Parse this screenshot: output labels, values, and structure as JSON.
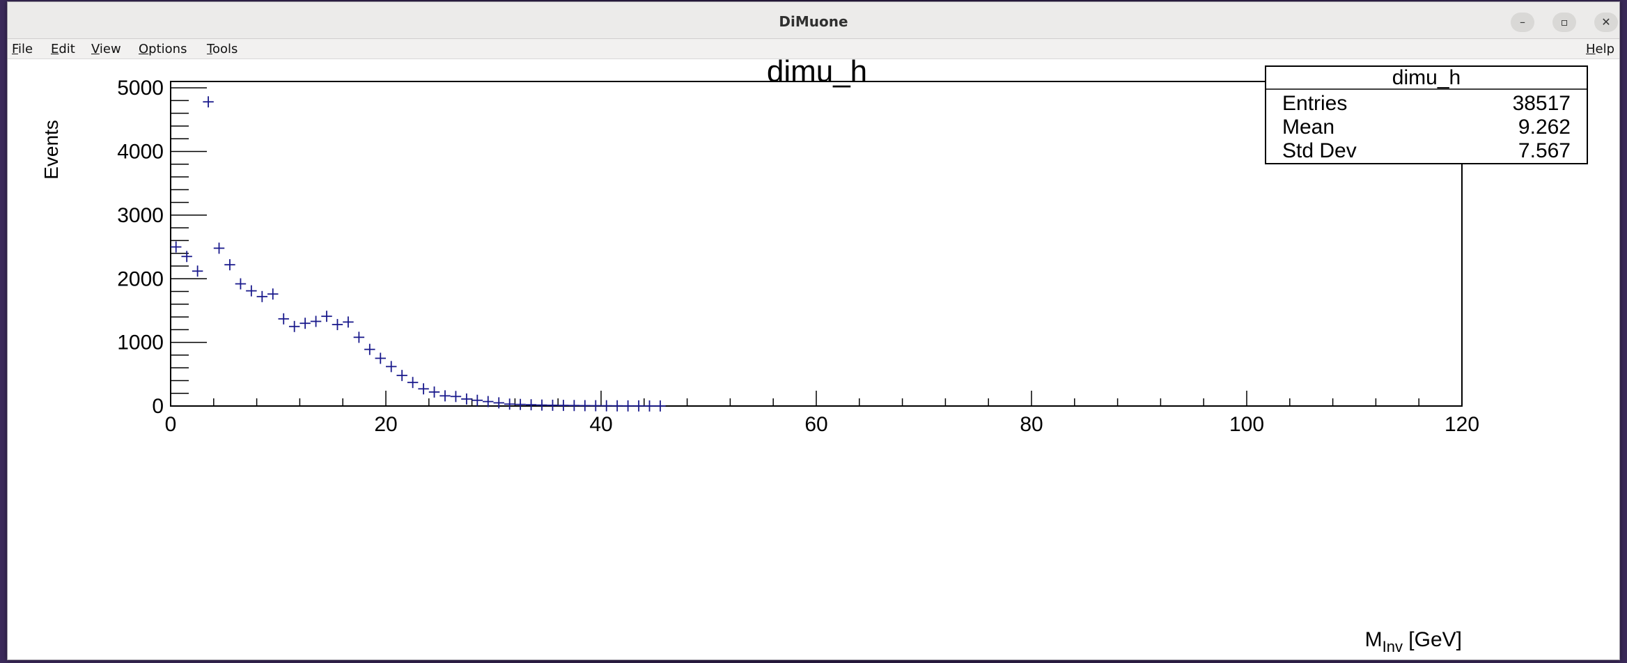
{
  "window": {
    "title": "DiMuone",
    "controls": {
      "minimize": "–",
      "maximize": "▫",
      "close": "✕"
    }
  },
  "menubar": {
    "items": [
      {
        "label": "File",
        "mnemonic": "F",
        "rest": "ile"
      },
      {
        "label": "Edit",
        "mnemonic": "E",
        "rest": "dit"
      },
      {
        "label": "View",
        "mnemonic": "V",
        "rest": "iew"
      },
      {
        "label": "Options",
        "mnemonic": "O",
        "rest": "ptions"
      },
      {
        "label": "Tools",
        "mnemonic": "T",
        "rest": "ools"
      }
    ],
    "help": {
      "label": "Help",
      "mnemonic": "H",
      "rest": "elp"
    }
  },
  "stats_box": {
    "title": "dimu_h",
    "rows": [
      {
        "label": "Entries",
        "value": "38517"
      },
      {
        "label": "Mean",
        "value": "9.262"
      },
      {
        "label": "Std Dev",
        "value": "7.567"
      }
    ]
  },
  "chart_data": {
    "type": "scatter",
    "title": "dimu_h",
    "xlabel_main": "M",
    "xlabel_sub": "Inv",
    "xlabel_unit": " [GeV]",
    "ylabel": "Events",
    "xlim": [
      0,
      120
    ],
    "ylim": [
      0,
      5100
    ],
    "x_ticks": [
      0,
      20,
      40,
      60,
      80,
      100,
      120
    ],
    "y_ticks": [
      0,
      1000,
      2000,
      3000,
      4000,
      5000
    ],
    "bin_width": 1,
    "marker_color": "#1a1a8c",
    "x": [
      0.5,
      1.5,
      2.5,
      3.5,
      4.5,
      5.5,
      6.5,
      7.5,
      8.5,
      9.5,
      10.5,
      11.5,
      12.5,
      13.5,
      14.5,
      15.5,
      16.5,
      17.5,
      18.5,
      19.5,
      20.5,
      21.5,
      22.5,
      23.5,
      24.5,
      25.5,
      26.5,
      27.5,
      28.5,
      29.5,
      30.5,
      31.5,
      32.5,
      33.5,
      34.5,
      35.5,
      36.5,
      37.5,
      38.5,
      39.5,
      40.5,
      41.5,
      42.5,
      43.5,
      44.5,
      45.5
    ],
    "y": [
      2500,
      2350,
      2120,
      4780,
      2480,
      2220,
      1920,
      1810,
      1720,
      1760,
      1370,
      1250,
      1300,
      1330,
      1410,
      1280,
      1320,
      1080,
      890,
      750,
      620,
      480,
      370,
      270,
      220,
      160,
      150,
      110,
      90,
      70,
      50,
      30,
      25,
      20,
      15,
      12,
      10,
      8,
      6,
      5,
      4,
      3,
      2,
      2,
      1,
      1
    ]
  }
}
